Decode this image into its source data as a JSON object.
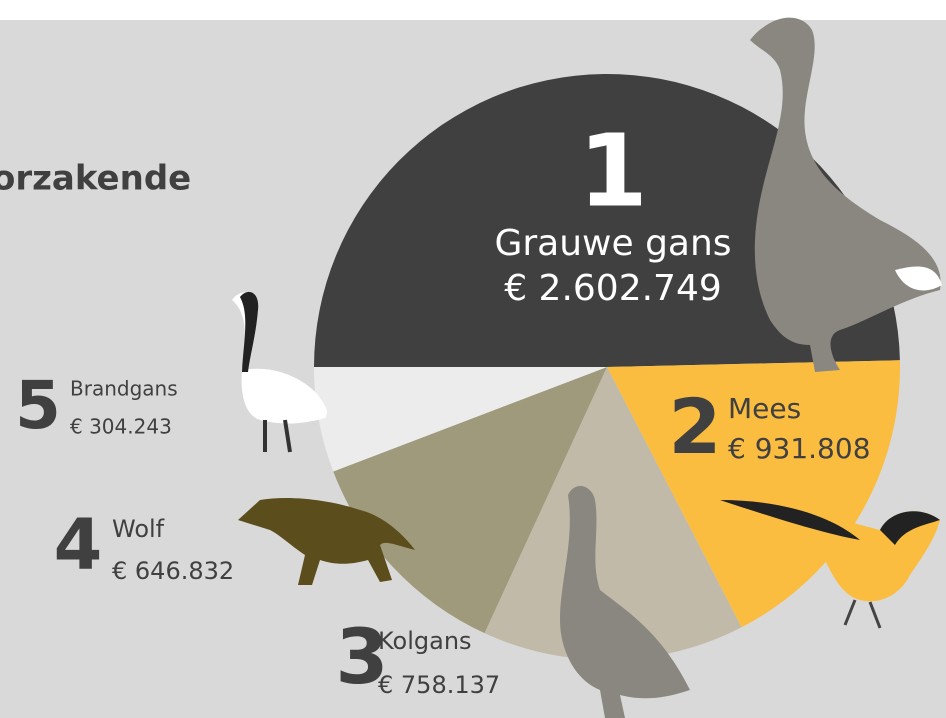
{
  "chart_data": {
    "type": "pie",
    "title": "orzakende",
    "categories": [
      "Grauwe gans",
      "Mees",
      "Kolgans",
      "Wolf",
      "Brandgans"
    ],
    "values": [
      2602749,
      931808,
      758137,
      646832,
      304243
    ],
    "value_labels": [
      "€ 2.602.749",
      "€ 931.808",
      "€ 758.137",
      "€ 646.832",
      "€ 304.243"
    ],
    "ranks": [
      1,
      2,
      3,
      4,
      5
    ],
    "colors": [
      "#404040",
      "#fbbd40",
      "#c2baa9",
      "#9f9a7b",
      "#ececec"
    ]
  }
}
